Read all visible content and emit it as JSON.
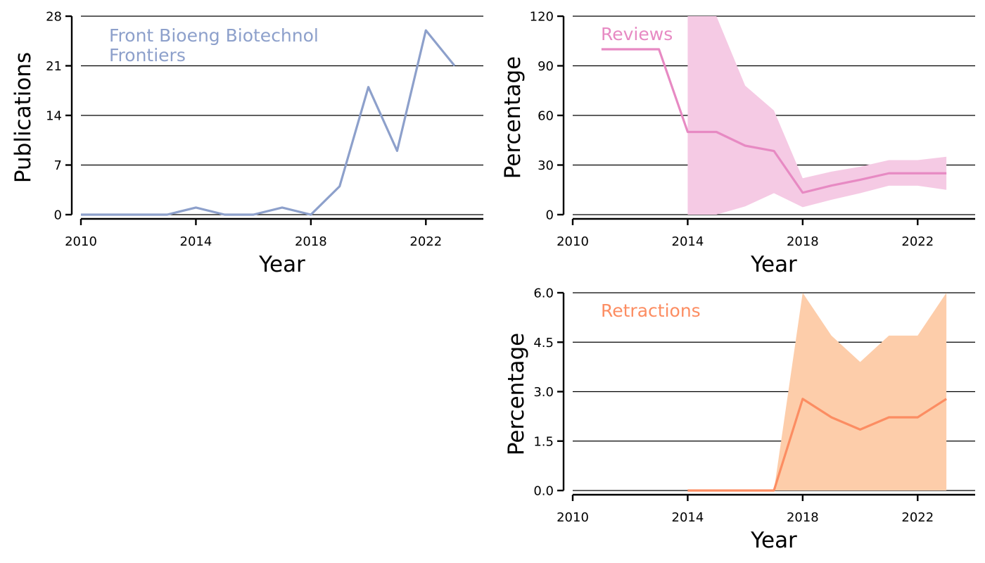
{
  "colors": {
    "publications": "#8da0cb",
    "reviews": "#e78ac3",
    "reviews_band": "#f5cae4",
    "retractions": "#fc8d62",
    "retractions_band": "#fdcdaa",
    "gridline": "#000000",
    "axis": "#000000"
  },
  "chart_data": [
    {
      "id": "publications",
      "type": "line",
      "xlabel": "Year",
      "ylabel": "Publications",
      "annotation": [
        "Front Bioeng Biotechnol",
        "Frontiers"
      ],
      "xlim": [
        2010,
        2024
      ],
      "xticks": [
        2010,
        2014,
        2018,
        2022
      ],
      "xtick_labels": [
        "2010",
        "2014",
        "2018",
        "2022"
      ],
      "ylim": [
        0,
        28
      ],
      "yticks": [
        0,
        7,
        14,
        21,
        28
      ],
      "ytick_labels": [
        "0",
        "7",
        "14",
        "21",
        "28"
      ],
      "grid": "horizontal",
      "series": [
        {
          "x": [
            2010,
            2011,
            2012,
            2013,
            2014,
            2015,
            2016,
            2017,
            2018,
            2019,
            2020,
            2021,
            2022,
            2023
          ],
          "values": [
            0,
            0,
            0,
            0,
            1,
            0,
            0,
            1,
            0,
            4,
            18,
            9,
            26,
            21
          ]
        }
      ]
    },
    {
      "id": "reviews",
      "type": "line",
      "xlabel": "Year",
      "ylabel": "Percentage",
      "annotation": [
        "Reviews"
      ],
      "xlim": [
        2010,
        2024
      ],
      "xticks": [
        2010,
        2014,
        2018,
        2022
      ],
      "xtick_labels": [
        "2010",
        "2014",
        "2018",
        "2022"
      ],
      "ylim": [
        0,
        120
      ],
      "yticks": [
        0,
        30,
        60,
        90,
        120
      ],
      "ytick_labels": [
        "0",
        "30",
        "60",
        "90",
        "120"
      ],
      "grid": "horizontal",
      "series": [
        {
          "x": [
            2011,
            2012,
            2013,
            2014,
            2015,
            2016,
            2017,
            2018,
            2019,
            2020,
            2021,
            2022,
            2023
          ],
          "values": [
            100,
            100,
            100,
            50,
            50,
            41.7,
            38.5,
            13.3,
            17.6,
            21.1,
            25,
            25,
            25
          ]
        }
      ],
      "band": {
        "x": [
          2014,
          2015,
          2016,
          2017,
          2018,
          2019,
          2020,
          2021,
          2022,
          2023
        ],
        "lower": [
          0,
          0,
          5,
          13,
          4.5,
          9,
          13,
          17.5,
          17.5,
          15
        ],
        "upper": [
          120,
          120,
          78,
          63,
          22,
          26,
          29,
          33,
          33,
          35
        ]
      }
    },
    {
      "id": "retractions",
      "type": "line",
      "xlabel": "Year",
      "ylabel": "Percentage",
      "annotation": [
        "Retractions"
      ],
      "xlim": [
        2010,
        2024
      ],
      "xticks": [
        2010,
        2014,
        2018,
        2022
      ],
      "xtick_labels": [
        "2010",
        "2014",
        "2018",
        "2022"
      ],
      "ylim": [
        0,
        6
      ],
      "yticks": [
        0,
        1.5,
        3,
        4.5,
        6
      ],
      "ytick_labels": [
        "0.0",
        "1.5",
        "3.0",
        "4.5",
        "6.0"
      ],
      "grid": "horizontal",
      "series": [
        {
          "x": [
            2014,
            2015,
            2016,
            2017,
            2018,
            2019,
            2020,
            2021,
            2022,
            2023
          ],
          "values": [
            0,
            0,
            0,
            0,
            2.78,
            2.22,
            1.85,
            2.22,
            2.22,
            2.78
          ]
        }
      ],
      "band": {
        "x": [
          2014,
          2015,
          2016,
          2017,
          2018,
          2019,
          2020,
          2021,
          2022,
          2023
        ],
        "lower": [
          0,
          0,
          0,
          0,
          0,
          0,
          0,
          0,
          0,
          0
        ],
        "upper": [
          0,
          0,
          0,
          0,
          6,
          4.7,
          3.9,
          4.7,
          4.7,
          6
        ]
      }
    }
  ]
}
